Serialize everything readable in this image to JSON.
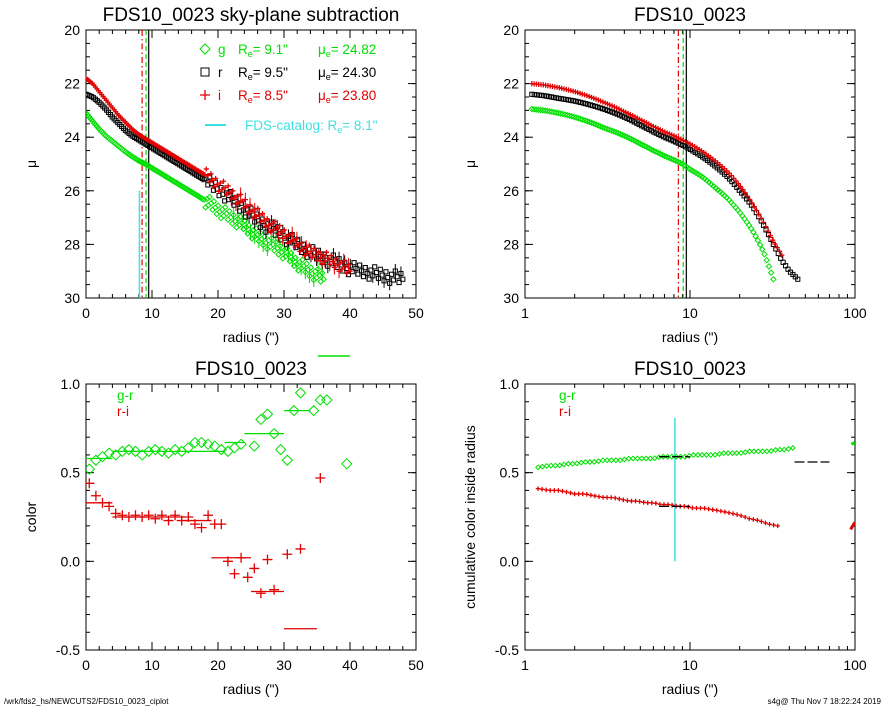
{
  "colors": {
    "g": "#00e000",
    "r": "#000000",
    "i": "#e00000",
    "catalog": "#40e0e0"
  },
  "footer": {
    "left": "/wrk/fds2_hs/NEWCUTS2/FDS10_0023_ciplot",
    "right": "s4g@  Thu Nov  7 18:22:24 2019"
  },
  "chart_data": [
    {
      "type": "scatter",
      "title": "FDS10_0023 sky-plane subtraction",
      "xlabel": "radius (\")",
      "ylabel": "μ",
      "xlim": [
        0,
        50
      ],
      "ylim": [
        30,
        20
      ],
      "xticks": [
        "0",
        "10",
        "20",
        "30",
        "40",
        "50"
      ],
      "yticks": [
        "20",
        "22",
        "24",
        "26",
        "28",
        "30"
      ],
      "legend_position": "top-right",
      "legend": [
        {
          "band": "g",
          "symbol": "diamond",
          "Re_label": "R",
          "Re_sub": "e",
          "Re_value": "=   9.1\"",
          "mue_label": "μ",
          "mue_sub": "e",
          "mue_value": "= 24.82"
        },
        {
          "band": "r",
          "symbol": "square",
          "Re_label": "R",
          "Re_sub": "e",
          "Re_value": "=   9.5\"",
          "mue_label": "μ",
          "mue_sub": "e",
          "mue_value": "= 24.30"
        },
        {
          "band": "i",
          "symbol": "plus",
          "Re_label": "R",
          "Re_sub": "e",
          "Re_value": "=   8.5\"",
          "mue_label": "μ",
          "mue_sub": "e",
          "mue_value": "= 23.80"
        }
      ],
      "catalog_label": "FDS-catalog: R",
      "catalog_sub": "e",
      "catalog_value": "=   8.1\"",
      "vlines": [
        {
          "band": "g",
          "x": 9.1,
          "style": "dashed"
        },
        {
          "band": "r",
          "x": 9.5,
          "style": "solid"
        },
        {
          "band": "i",
          "x": 8.5,
          "style": "dashdot"
        }
      ],
      "catalog_line": {
        "x": 8.1,
        "y_from": 26.0,
        "y_to": 30.0
      },
      "series": [
        {
          "name": "g",
          "x": [
            0,
            1,
            2,
            3,
            4,
            5,
            6,
            7,
            8,
            9,
            10,
            12,
            14,
            16,
            18,
            20,
            22,
            24,
            26,
            28,
            30,
            32,
            34,
            36
          ],
          "y": [
            23.1,
            23.4,
            23.7,
            23.95,
            24.15,
            24.35,
            24.55,
            24.72,
            24.88,
            25.0,
            25.15,
            25.45,
            25.75,
            26.05,
            26.35,
            26.7,
            27.0,
            27.3,
            27.7,
            28.0,
            28.3,
            28.7,
            29.0,
            29.3
          ]
        },
        {
          "name": "r",
          "x": [
            0,
            1,
            2,
            3,
            4,
            5,
            6,
            7,
            8,
            9,
            10,
            12,
            14,
            16,
            18,
            20,
            22,
            24,
            26,
            28,
            30,
            32,
            34,
            36,
            38,
            40,
            42,
            44,
            46,
            48
          ],
          "y": [
            22.4,
            22.5,
            22.7,
            22.95,
            23.25,
            23.5,
            23.75,
            23.95,
            24.1,
            24.25,
            24.4,
            24.7,
            25.0,
            25.3,
            25.6,
            25.95,
            26.3,
            26.7,
            27.1,
            27.4,
            27.7,
            28.0,
            28.3,
            28.5,
            28.7,
            28.9,
            29.0,
            29.1,
            29.2,
            29.3
          ]
        },
        {
          "name": "i",
          "x": [
            0,
            1,
            2,
            3,
            4,
            5,
            6,
            7,
            8,
            9,
            10,
            12,
            14,
            16,
            18,
            20,
            22,
            24,
            26,
            28,
            30,
            32,
            34,
            36,
            38,
            40
          ],
          "y": [
            21.8,
            22.0,
            22.3,
            22.6,
            22.9,
            23.2,
            23.45,
            23.7,
            23.9,
            24.05,
            24.2,
            24.5,
            24.8,
            25.1,
            25.4,
            25.75,
            26.1,
            26.5,
            26.9,
            27.3,
            27.6,
            28.0,
            28.3,
            28.5,
            28.7,
            29.0
          ]
        }
      ]
    },
    {
      "type": "scatter",
      "title": "FDS10_0023",
      "xlabel": "radius (\")",
      "ylabel": "μ",
      "xscale": "log",
      "xlim": [
        1,
        100
      ],
      "ylim": [
        30,
        20
      ],
      "xticks": [
        "1",
        "10",
        "100"
      ],
      "yticks": [
        "20",
        "22",
        "24",
        "26",
        "28",
        "30"
      ],
      "vlines": [
        {
          "band": "g",
          "x": 9.1,
          "style": "dashed"
        },
        {
          "band": "r",
          "x": 9.5,
          "style": "solid"
        },
        {
          "band": "i",
          "x": 8.5,
          "style": "dashdot"
        }
      ],
      "series": [
        {
          "name": "g",
          "x": [
            1.1,
            1.3,
            1.6,
            2,
            2.5,
            3,
            4,
            5,
            6,
            7,
            8,
            9,
            10,
            12,
            14,
            17,
            20,
            24,
            28,
            32
          ],
          "y": [
            22.95,
            23.0,
            23.1,
            23.25,
            23.45,
            23.65,
            23.95,
            24.25,
            24.5,
            24.7,
            24.85,
            25.0,
            25.2,
            25.5,
            25.85,
            26.3,
            26.8,
            27.5,
            28.3,
            29.3
          ]
        },
        {
          "name": "r",
          "x": [
            1.1,
            1.3,
            1.6,
            2,
            2.5,
            3,
            4,
            5,
            6,
            7,
            8,
            9,
            10,
            12,
            14,
            17,
            20,
            24,
            28,
            32,
            36,
            40,
            45
          ],
          "y": [
            22.4,
            22.45,
            22.55,
            22.65,
            22.8,
            22.95,
            23.25,
            23.55,
            23.8,
            24.0,
            24.15,
            24.3,
            24.45,
            24.75,
            25.05,
            25.5,
            26.0,
            26.6,
            27.3,
            28.0,
            28.6,
            29.0,
            29.3
          ]
        },
        {
          "name": "i",
          "x": [
            1.1,
            1.3,
            1.6,
            2,
            2.5,
            3,
            4,
            5,
            6,
            7,
            8,
            9,
            10,
            12,
            14,
            17,
            20,
            24,
            28,
            32,
            36
          ],
          "y": [
            22.0,
            22.05,
            22.15,
            22.3,
            22.5,
            22.7,
            23.05,
            23.35,
            23.6,
            23.8,
            23.95,
            24.1,
            24.25,
            24.55,
            24.85,
            25.3,
            25.8,
            26.5,
            27.2,
            27.9,
            28.4
          ]
        }
      ]
    },
    {
      "type": "scatter",
      "title": "FDS10_0023",
      "xlabel": "radius (\")",
      "ylabel": "color",
      "xlim": [
        0,
        50
      ],
      "ylim": [
        -0.5,
        1.0
      ],
      "xticks": [
        "0",
        "10",
        "20",
        "30",
        "40",
        "50"
      ],
      "yticks": [
        "-0.5",
        "0.0",
        "0.5",
        "1.0"
      ],
      "legend_position": "top-left",
      "legend": [
        {
          "name": "g-r",
          "band": "g"
        },
        {
          "name": "r-i",
          "band": "i"
        }
      ],
      "series": [
        {
          "name": "g-r",
          "x": [
            0.5,
            1.5,
            2.5,
            3.5,
            4.5,
            5.5,
            6.5,
            7.5,
            8.5,
            9.5,
            10.5,
            11.5,
            12.5,
            13.5,
            14.5,
            15.5,
            16.5,
            17.5,
            18.5,
            19.5,
            20.5,
            21.5,
            22.5,
            23.5,
            25.5,
            26.5,
            27.5,
            28.5,
            29.5,
            30.5,
            31.5,
            32.5,
            34.5,
            35.5,
            36.5,
            39.5
          ],
          "y": [
            0.52,
            0.57,
            0.59,
            0.61,
            0.6,
            0.62,
            0.63,
            0.62,
            0.6,
            0.62,
            0.63,
            0.62,
            0.61,
            0.63,
            0.62,
            0.64,
            0.67,
            0.67,
            0.66,
            0.65,
            0.63,
            0.62,
            0.64,
            0.66,
            0.65,
            0.8,
            0.83,
            0.72,
            0.63,
            0.57,
            0.85,
            0.95,
            0.85,
            0.91,
            0.91,
            0.55
          ]
        },
        {
          "name": "r-i",
          "x": [
            0.5,
            1.5,
            2.5,
            3.5,
            4.5,
            5.5,
            6.5,
            7.5,
            8.5,
            9.5,
            10.5,
            11.5,
            12.5,
            13.5,
            14.5,
            15.5,
            16.5,
            17.5,
            18.5,
            19.5,
            20.5,
            21.5,
            22.5,
            23.5,
            24.5,
            25.5,
            26.5,
            27.5,
            28.5,
            30.5,
            32.5,
            35.5
          ],
          "y": [
            0.44,
            0.37,
            0.33,
            0.31,
            0.27,
            0.26,
            0.25,
            0.26,
            0.25,
            0.26,
            0.24,
            0.26,
            0.23,
            0.26,
            0.23,
            0.25,
            0.21,
            0.19,
            0.26,
            0.21,
            0.21,
            0.0,
            -0.07,
            0.02,
            -0.09,
            -0.04,
            -0.18,
            0.01,
            -0.16,
            0.04,
            0.07,
            0.47
          ]
        }
      ],
      "bin_segments": [
        {
          "band": "g",
          "x": [
            0,
            4
          ],
          "y": 0.58
        },
        {
          "band": "g",
          "x": [
            4,
            21
          ],
          "y": 0.62
        },
        {
          "band": "g",
          "x": [
            21,
            24
          ],
          "y": 0.67
        },
        {
          "band": "g",
          "x": [
            24,
            30
          ],
          "y": 0.72
        },
        {
          "band": "g",
          "x": [
            30,
            34
          ],
          "y": 0.85
        },
        {
          "band": "g",
          "x": [
            35,
            39
          ],
          "y": 1.07
        },
        {
          "band": "i",
          "x": [
            0,
            4
          ],
          "y": 0.33
        },
        {
          "band": "i",
          "x": [
            4,
            15
          ],
          "y": 0.25
        },
        {
          "band": "i",
          "x": [
            15,
            19
          ],
          "y": 0.23
        },
        {
          "band": "i",
          "x": [
            19,
            25
          ],
          "y": 0.02
        },
        {
          "band": "i",
          "x": [
            25,
            30
          ],
          "y": -0.17
        },
        {
          "band": "i",
          "x": [
            30,
            35
          ],
          "y": -0.38
        }
      ]
    },
    {
      "type": "scatter",
      "title": "FDS10_0023",
      "xlabel": "radius (\")",
      "ylabel": "cumulative color inside radius",
      "xscale": "log",
      "xlim": [
        1,
        100
      ],
      "ylim": [
        -0.5,
        1.0
      ],
      "xticks": [
        "1",
        "10",
        "100"
      ],
      "yticks": [
        "-0.5",
        "0.0",
        "0.5",
        "1.0"
      ],
      "legend_position": "top-left",
      "legend": [
        {
          "name": "g-r",
          "band": "g"
        },
        {
          "name": "r-i",
          "band": "i"
        }
      ],
      "catalog_line": {
        "x": 8.1,
        "y_from": 0.0,
        "y_to": 0.81
      },
      "series": [
        {
          "name": "g-r",
          "x": [
            1.2,
            1.4,
            1.6,
            1.8,
            2,
            2.3,
            2.6,
            3,
            3.4,
            3.8,
            4.3,
            4.8,
            5.4,
            6,
            6.7,
            7.5,
            8.4,
            9.4,
            10.5,
            12,
            14,
            16,
            18,
            20,
            23,
            26,
            30,
            34,
            38,
            42
          ],
          "y": [
            0.53,
            0.54,
            0.54,
            0.55,
            0.55,
            0.56,
            0.56,
            0.57,
            0.57,
            0.57,
            0.58,
            0.58,
            0.58,
            0.58,
            0.59,
            0.59,
            0.59,
            0.59,
            0.6,
            0.6,
            0.6,
            0.61,
            0.61,
            0.61,
            0.62,
            0.62,
            0.62,
            0.63,
            0.63,
            0.64
          ]
        },
        {
          "name": "r-i",
          "x": [
            1.2,
            1.4,
            1.6,
            1.8,
            2,
            2.3,
            2.6,
            3,
            3.4,
            3.8,
            4.3,
            4.8,
            5.4,
            6,
            6.7,
            7.5,
            8.4,
            9.4,
            10.5,
            12,
            14,
            16,
            18,
            20,
            23,
            26,
            30,
            34
          ],
          "y": [
            0.41,
            0.4,
            0.4,
            0.39,
            0.38,
            0.38,
            0.37,
            0.36,
            0.36,
            0.35,
            0.34,
            0.34,
            0.33,
            0.33,
            0.32,
            0.32,
            0.31,
            0.31,
            0.3,
            0.3,
            0.29,
            0.28,
            0.27,
            0.26,
            0.24,
            0.23,
            0.21,
            0.2
          ]
        }
      ],
      "bin_segments": [
        {
          "band": "r",
          "x": [
            6.5,
            10
          ],
          "y": 0.59
        },
        {
          "band": "r",
          "x": [
            6.5,
            10
          ],
          "y": 0.31
        },
        {
          "band": "r",
          "x": [
            43,
            70
          ],
          "y": 0.56
        }
      ],
      "edge_points": [
        {
          "band": "g",
          "x": [
            95,
            100
          ],
          "y": [
            0.66,
            0.67
          ]
        },
        {
          "band": "i",
          "x": [
            94,
            100
          ],
          "y": [
            0.18,
            0.22
          ]
        }
      ]
    }
  ]
}
